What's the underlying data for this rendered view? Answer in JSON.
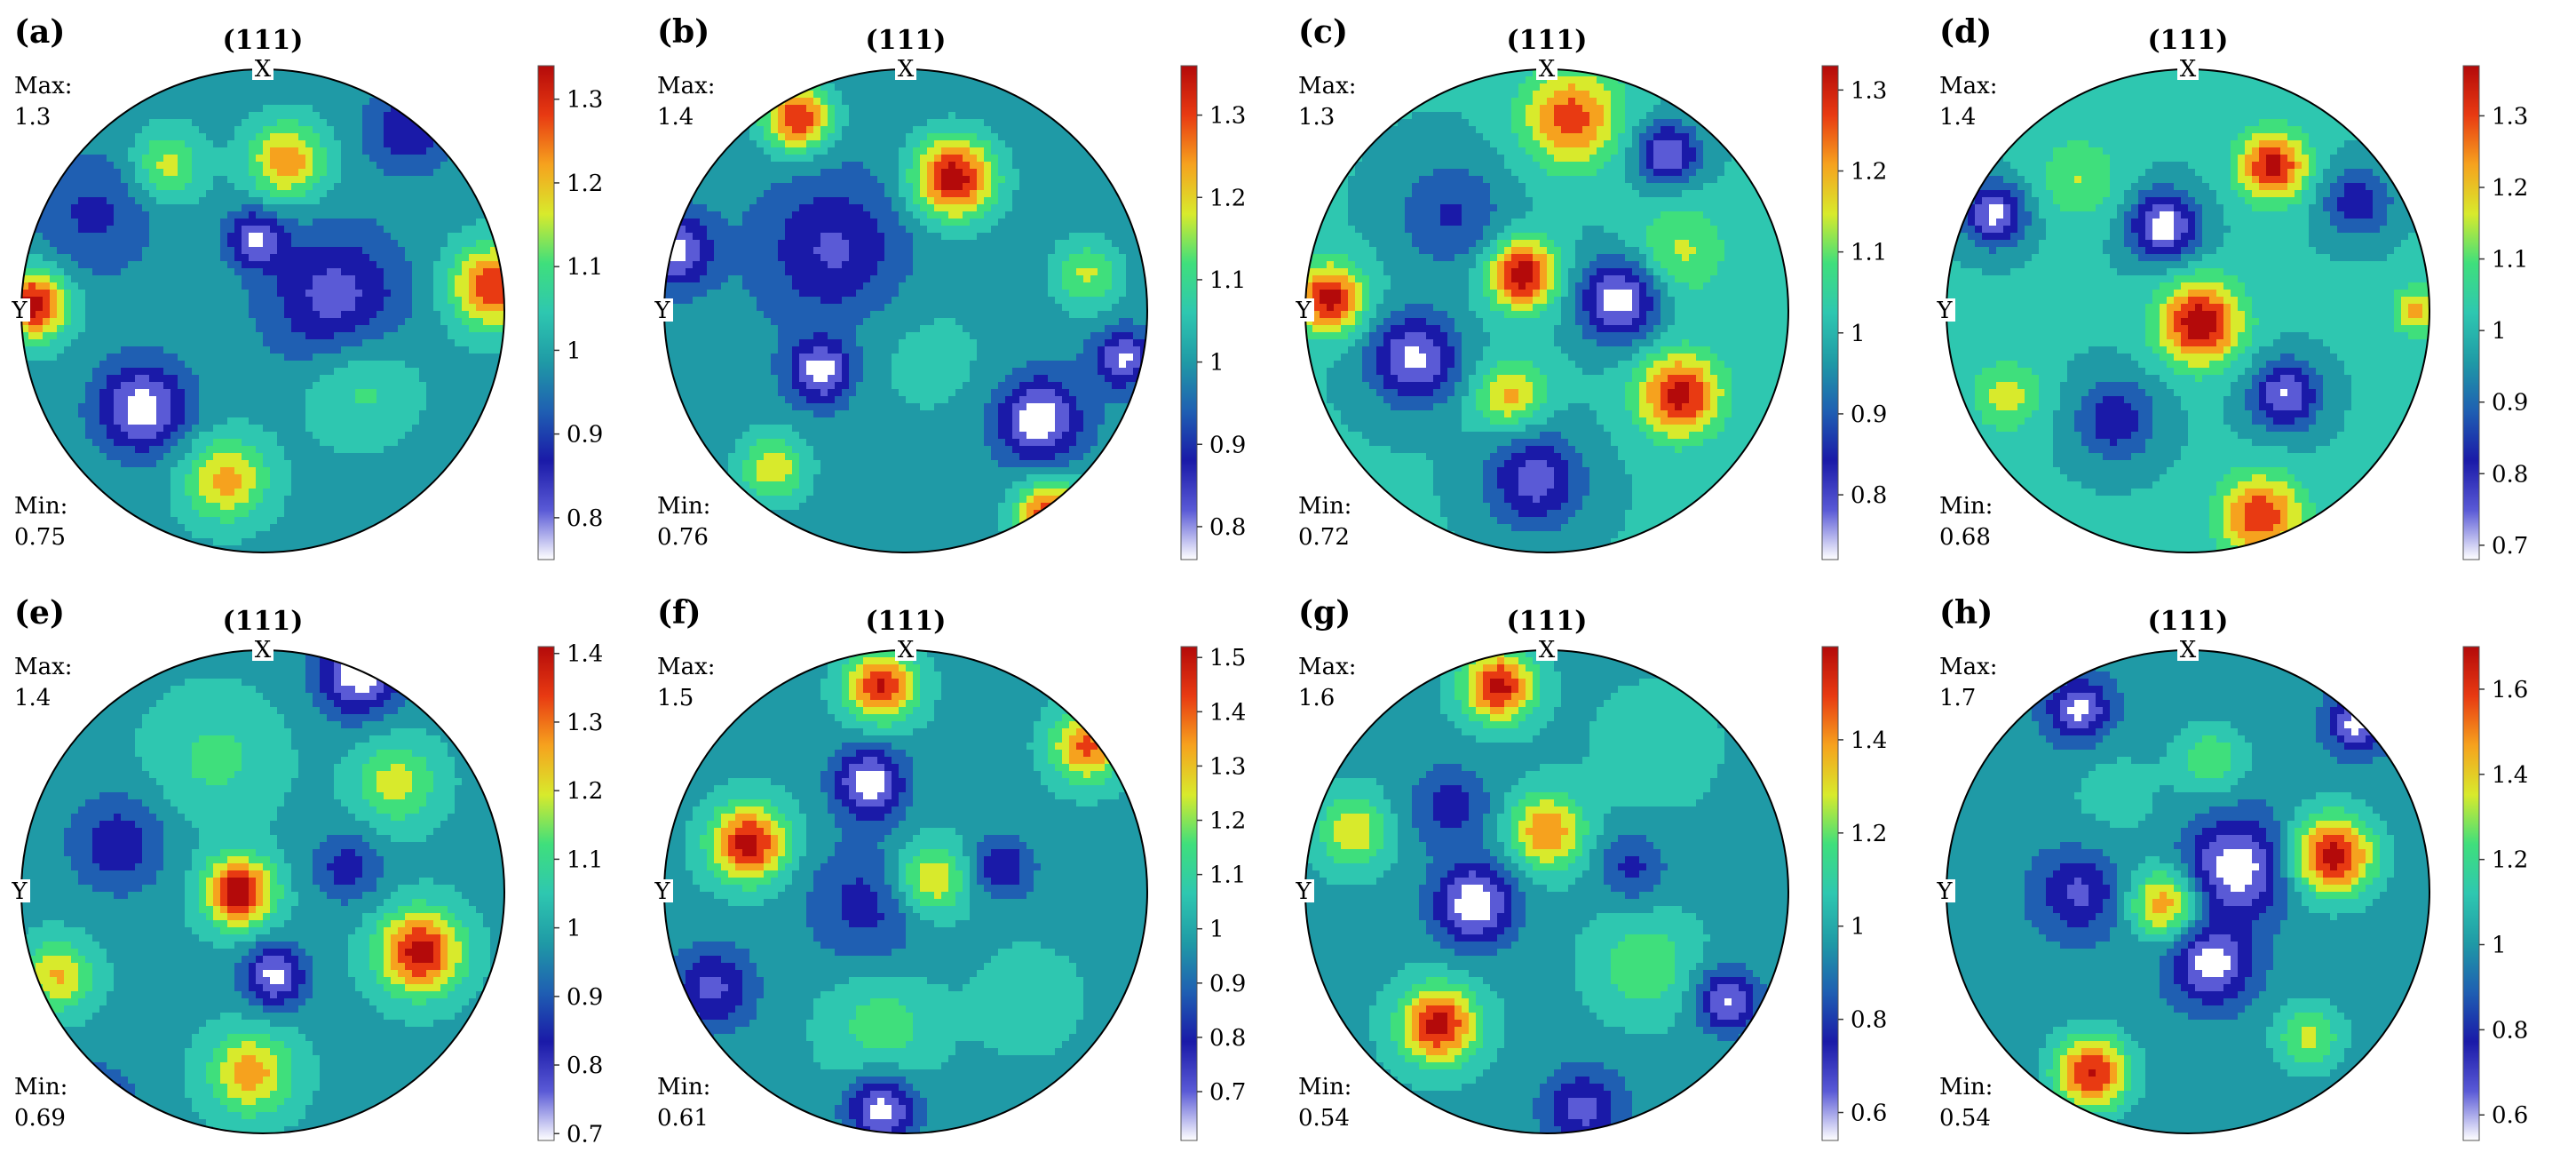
{
  "figure": {
    "plane_label": "(111)",
    "x_axis_tag": "X",
    "y_axis_tag": "Y",
    "max_prefix": "Max:",
    "min_prefix": "Min:"
  },
  "palette": [
    "#ffffff",
    "#5a5ad6",
    "#1a1aa8",
    "#1f5fb2",
    "#1f9aa6",
    "#2ec7b0",
    "#3fdf7c",
    "#d8ea2c",
    "#f6a21e",
    "#e83a12",
    "#b40a0a"
  ],
  "chart_data": [
    {
      "type": "heatmap",
      "panel": "(a)",
      "projection": "(111) pole figure",
      "max": "1.3",
      "min": "0.75",
      "cmin": 0.75,
      "cmax": 1.34,
      "colorbar_ticks": [
        "0.8",
        "0.9",
        "1",
        "1.1",
        "1.2",
        "1.3"
      ],
      "blobs": [
        {
          "x": -0.5,
          "y": -0.4,
          "v": 0.77,
          "s": 0.13
        },
        {
          "x": -0.03,
          "y": 0.3,
          "v": 0.8,
          "s": 0.08
        },
        {
          "x": -0.95,
          "y": 0.03,
          "v": 1.32,
          "s": 0.1
        },
        {
          "x": 0.95,
          "y": 0.1,
          "v": 1.28,
          "s": 0.12
        },
        {
          "x": 0.1,
          "y": 0.62,
          "v": 1.22,
          "s": 0.11
        },
        {
          "x": -0.4,
          "y": 0.6,
          "v": 1.15,
          "s": 0.1
        },
        {
          "x": -0.15,
          "y": -0.7,
          "v": 1.2,
          "s": 0.12
        },
        {
          "x": 0.4,
          "y": -0.3,
          "v": 1.1,
          "s": 0.16
        },
        {
          "x": 0.3,
          "y": 0.05,
          "v": 0.83,
          "s": 0.2
        },
        {
          "x": 0.6,
          "y": 0.75,
          "v": 0.86,
          "s": 0.12
        },
        {
          "x": -0.7,
          "y": 0.4,
          "v": 0.9,
          "s": 0.18
        }
      ]
    },
    {
      "type": "heatmap",
      "panel": "(b)",
      "projection": "(111) pole figure",
      "max": "1.4",
      "min": "0.76",
      "cmin": 0.76,
      "cmax": 1.36,
      "colorbar_ticks": [
        "0.8",
        "0.9",
        "1",
        "1.1",
        "1.2",
        "1.3"
      ],
      "blobs": [
        {
          "x": 0.2,
          "y": 0.55,
          "v": 1.34,
          "s": 0.12
        },
        {
          "x": -0.45,
          "y": 0.8,
          "v": 1.3,
          "s": 0.1
        },
        {
          "x": 0.6,
          "y": -0.85,
          "v": 1.32,
          "s": 0.1
        },
        {
          "x": -0.35,
          "y": -0.25,
          "v": 0.78,
          "s": 0.09
        },
        {
          "x": 0.55,
          "y": -0.45,
          "v": 0.77,
          "s": 0.12
        },
        {
          "x": -0.95,
          "y": 0.25,
          "v": 0.79,
          "s": 0.1
        },
        {
          "x": 0.9,
          "y": -0.2,
          "v": 0.8,
          "s": 0.08
        },
        {
          "x": -0.55,
          "y": -0.65,
          "v": 1.18,
          "s": 0.1
        },
        {
          "x": 0.75,
          "y": 0.15,
          "v": 1.15,
          "s": 0.1
        },
        {
          "x": 0.1,
          "y": -0.2,
          "v": 1.05,
          "s": 0.22
        },
        {
          "x": -0.3,
          "y": 0.25,
          "v": 0.86,
          "s": 0.2
        }
      ]
    },
    {
      "type": "heatmap",
      "panel": "(c)",
      "projection": "(111) pole figure",
      "max": "1.3",
      "min": "0.72",
      "cmin": 0.72,
      "cmax": 1.33,
      "colorbar_ticks": [
        "0.8",
        "0.9",
        "1",
        "1.1",
        "1.2",
        "1.3"
      ],
      "blobs": [
        {
          "x": -0.1,
          "y": 0.15,
          "v": 1.32,
          "s": 0.1
        },
        {
          "x": -0.9,
          "y": 0.05,
          "v": 1.3,
          "s": 0.1
        },
        {
          "x": 0.55,
          "y": -0.35,
          "v": 1.3,
          "s": 0.12
        },
        {
          "x": 0.1,
          "y": 0.8,
          "v": 1.25,
          "s": 0.14
        },
        {
          "x": 0.3,
          "y": 0.05,
          "v": 0.74,
          "s": 0.12
        },
        {
          "x": -0.55,
          "y": -0.2,
          "v": 0.76,
          "s": 0.13
        },
        {
          "x": 0.5,
          "y": 0.65,
          "v": 0.77,
          "s": 0.09
        },
        {
          "x": -0.05,
          "y": -0.7,
          "v": 0.8,
          "s": 0.14
        },
        {
          "x": -0.15,
          "y": -0.35,
          "v": 1.18,
          "s": 0.1
        },
        {
          "x": 0.55,
          "y": 0.25,
          "v": 1.12,
          "s": 0.14
        },
        {
          "x": -0.4,
          "y": 0.4,
          "v": 0.88,
          "s": 0.16
        }
      ]
    },
    {
      "type": "heatmap",
      "panel": "(d)",
      "projection": "(111) pole figure",
      "max": "1.4",
      "min": "0.68",
      "cmin": 0.68,
      "cmax": 1.37,
      "colorbar_ticks": [
        "0.7",
        "0.8",
        "0.9",
        "1",
        "1.1",
        "1.2",
        "1.3"
      ],
      "blobs": [
        {
          "x": 0.05,
          "y": -0.05,
          "v": 1.36,
          "s": 0.12
        },
        {
          "x": 0.35,
          "y": 0.6,
          "v": 1.33,
          "s": 0.1
        },
        {
          "x": 0.3,
          "y": -0.85,
          "v": 1.3,
          "s": 0.12
        },
        {
          "x": -0.1,
          "y": 0.35,
          "v": 0.7,
          "s": 0.1
        },
        {
          "x": -0.8,
          "y": 0.4,
          "v": 0.72,
          "s": 0.09
        },
        {
          "x": 0.4,
          "y": -0.35,
          "v": 0.74,
          "s": 0.1
        },
        {
          "x": 0.7,
          "y": 0.45,
          "v": 0.82,
          "s": 0.1
        },
        {
          "x": -0.3,
          "y": -0.45,
          "v": 0.82,
          "s": 0.12
        },
        {
          "x": -0.45,
          "y": 0.55,
          "v": 1.12,
          "s": 0.12
        },
        {
          "x": -0.75,
          "y": -0.35,
          "v": 1.15,
          "s": 0.1
        },
        {
          "x": 0.95,
          "y": 0.0,
          "v": 1.2,
          "s": 0.07
        }
      ]
    },
    {
      "type": "heatmap",
      "panel": "(e)",
      "projection": "(111) pole figure",
      "max": "1.4",
      "min": "0.69",
      "cmin": 0.69,
      "cmax": 1.41,
      "colorbar_ticks": [
        "0.7",
        "0.8",
        "0.9",
        "1",
        "1.1",
        "1.2",
        "1.3",
        "1.4"
      ],
      "blobs": [
        {
          "x": -0.1,
          "y": 0.0,
          "v": 1.4,
          "s": 0.1
        },
        {
          "x": 0.65,
          "y": -0.25,
          "v": 1.38,
          "s": 0.12
        },
        {
          "x": -0.85,
          "y": -0.35,
          "v": 1.22,
          "s": 0.1
        },
        {
          "x": -0.05,
          "y": -0.75,
          "v": 1.25,
          "s": 0.12
        },
        {
          "x": 0.4,
          "y": 0.9,
          "v": 0.71,
          "s": 0.12
        },
        {
          "x": 0.05,
          "y": -0.35,
          "v": 0.73,
          "s": 0.09
        },
        {
          "x": -0.7,
          "y": -0.9,
          "v": 0.72,
          "s": 0.1
        },
        {
          "x": -0.6,
          "y": 0.2,
          "v": 0.84,
          "s": 0.14
        },
        {
          "x": 0.35,
          "y": 0.1,
          "v": 0.85,
          "s": 0.1
        },
        {
          "x": 0.55,
          "y": 0.45,
          "v": 1.18,
          "s": 0.12
        },
        {
          "x": -0.2,
          "y": 0.55,
          "v": 1.1,
          "s": 0.18
        }
      ]
    },
    {
      "type": "heatmap",
      "panel": "(f)",
      "projection": "(111) pole figure",
      "max": "1.5",
      "min": "0.61",
      "cmin": 0.61,
      "cmax": 1.52,
      "colorbar_ticks": [
        "0.7",
        "0.8",
        "0.9",
        "1",
        "1.1",
        "1.2",
        "1.3",
        "1.4",
        "1.5"
      ],
      "blobs": [
        {
          "x": -0.65,
          "y": 0.2,
          "v": 1.48,
          "s": 0.11
        },
        {
          "x": -0.1,
          "y": 0.85,
          "v": 1.45,
          "s": 0.1
        },
        {
          "x": 0.75,
          "y": 0.6,
          "v": 1.38,
          "s": 0.1
        },
        {
          "x": 0.1,
          "y": 0.05,
          "v": 1.3,
          "s": 0.11
        },
        {
          "x": -0.15,
          "y": 0.45,
          "v": 0.63,
          "s": 0.1
        },
        {
          "x": -0.1,
          "y": -0.9,
          "v": 0.65,
          "s": 0.1
        },
        {
          "x": -0.8,
          "y": -0.4,
          "v": 0.75,
          "s": 0.12
        },
        {
          "x": 0.4,
          "y": 0.1,
          "v": 0.78,
          "s": 0.09
        },
        {
          "x": -0.15,
          "y": -0.05,
          "v": 0.82,
          "s": 0.18
        },
        {
          "x": -0.1,
          "y": -0.55,
          "v": 1.15,
          "s": 0.16
        },
        {
          "x": 0.5,
          "y": -0.45,
          "v": 1.1,
          "s": 0.14
        }
      ]
    },
    {
      "type": "heatmap",
      "panel": "(g)",
      "projection": "(111) pole figure",
      "max": "1.6",
      "min": "0.54",
      "cmin": 0.54,
      "cmax": 1.6,
      "colorbar_ticks": [
        "0.6",
        "0.8",
        "1",
        "1.2",
        "1.4"
      ],
      "blobs": [
        {
          "x": -0.2,
          "y": 0.85,
          "v": 1.55,
          "s": 0.1
        },
        {
          "x": -0.45,
          "y": -0.55,
          "v": 1.55,
          "s": 0.11
        },
        {
          "x": 0.0,
          "y": 0.25,
          "v": 1.4,
          "s": 0.11
        },
        {
          "x": -0.8,
          "y": 0.25,
          "v": 1.3,
          "s": 0.1
        },
        {
          "x": 0.4,
          "y": -0.3,
          "v": 1.2,
          "s": 0.14
        },
        {
          "x": -0.3,
          "y": -0.05,
          "v": 0.56,
          "s": 0.12
        },
        {
          "x": 0.75,
          "y": -0.45,
          "v": 0.62,
          "s": 0.09
        },
        {
          "x": 0.15,
          "y": -0.9,
          "v": 0.7,
          "s": 0.12
        },
        {
          "x": 0.35,
          "y": 0.1,
          "v": 0.8,
          "s": 0.1
        },
        {
          "x": -0.4,
          "y": 0.35,
          "v": 0.78,
          "s": 0.12
        },
        {
          "x": 0.45,
          "y": 0.6,
          "v": 1.1,
          "s": 0.16
        }
      ]
    },
    {
      "type": "heatmap",
      "panel": "(h)",
      "projection": "(111) pole figure",
      "max": "1.7",
      "min": "0.54",
      "cmin": 0.54,
      "cmax": 1.7,
      "colorbar_ticks": [
        "0.6",
        "0.8",
        "1",
        "1.2",
        "1.4",
        "1.6"
      ],
      "blobs": [
        {
          "x": 0.6,
          "y": 0.15,
          "v": 1.65,
          "s": 0.12
        },
        {
          "x": -0.4,
          "y": -0.75,
          "v": 1.6,
          "s": 0.11
        },
        {
          "x": -0.1,
          "y": -0.05,
          "v": 1.45,
          "s": 0.1
        },
        {
          "x": 0.5,
          "y": -0.6,
          "v": 1.3,
          "s": 0.1
        },
        {
          "x": 0.2,
          "y": 0.1,
          "v": 0.56,
          "s": 0.14
        },
        {
          "x": 0.1,
          "y": -0.3,
          "v": 0.58,
          "s": 0.11
        },
        {
          "x": -0.45,
          "y": 0.75,
          "v": 0.6,
          "s": 0.09
        },
        {
          "x": 0.7,
          "y": 0.7,
          "v": 0.6,
          "s": 0.08
        },
        {
          "x": -0.45,
          "y": 0.0,
          "v": 0.72,
          "s": 0.12
        },
        {
          "x": -0.3,
          "y": 0.4,
          "v": 1.1,
          "s": 0.18
        },
        {
          "x": 0.1,
          "y": 0.55,
          "v": 1.25,
          "s": 0.1
        }
      ]
    }
  ]
}
